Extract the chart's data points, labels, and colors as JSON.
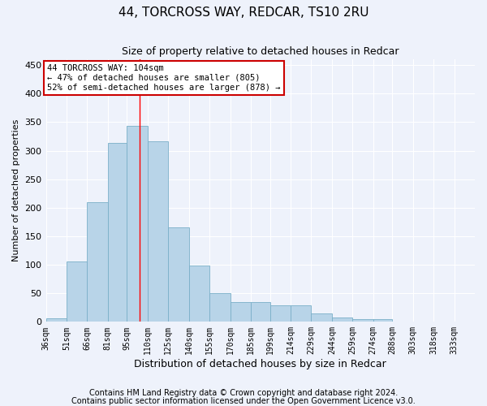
{
  "title1": "44, TORCROSS WAY, REDCAR, TS10 2RU",
  "title2": "Size of property relative to detached houses in Redcar",
  "xlabel": "Distribution of detached houses by size in Redcar",
  "ylabel": "Number of detached properties",
  "footnote1": "Contains HM Land Registry data © Crown copyright and database right 2024.",
  "footnote2": "Contains public sector information licensed under the Open Government Licence v3.0.",
  "annotation_line1": "44 TORCROSS WAY: 104sqm",
  "annotation_line2": "← 47% of detached houses are smaller (805)",
  "annotation_line3": "52% of semi-detached houses are larger (878) →",
  "property_size": 104,
  "tick_labels": [
    "36sqm",
    "51sqm",
    "66sqm",
    "81sqm",
    "95sqm",
    "110sqm",
    "125sqm",
    "140sqm",
    "155sqm",
    "170sqm",
    "185sqm",
    "199sqm",
    "214sqm",
    "229sqm",
    "244sqm",
    "259sqm",
    "274sqm",
    "288sqm",
    "303sqm",
    "318sqm",
    "333sqm"
  ],
  "bin_edges": [
    36,
    51,
    66,
    81,
    95,
    110,
    125,
    140,
    155,
    170,
    185,
    199,
    214,
    229,
    244,
    259,
    274,
    288,
    303,
    318,
    333,
    348
  ],
  "values": [
    6,
    106,
    210,
    313,
    344,
    316,
    165,
    98,
    50,
    35,
    35,
    29,
    29,
    15,
    8,
    5,
    5,
    1,
    1,
    1,
    0
  ],
  "bar_color": "#b8d4e8",
  "bar_edge_color": "#7aafc8",
  "red_line_x": 104,
  "background_color": "#eef2fb",
  "grid_color": "#ffffff",
  "annotation_border_color": "#cc0000",
  "ylim": [
    0,
    460
  ],
  "title1_fontsize": 11,
  "title2_fontsize": 9,
  "xlabel_fontsize": 9,
  "ylabel_fontsize": 8,
  "footnote_fontsize": 7,
  "tick_fontsize": 7
}
